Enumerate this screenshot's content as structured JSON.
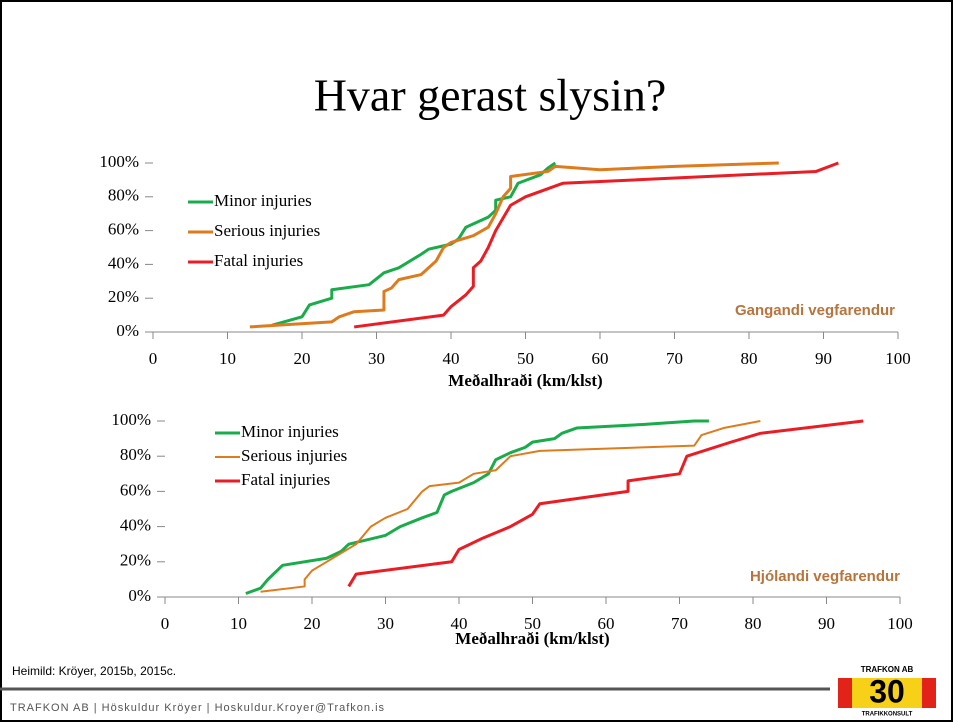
{
  "title": "Hvar gerast slysin?",
  "source": "Heimild: Kröyer, 2015b, 2015c.",
  "footer": "TRAFKON AB | Höskuldur Kröyer | Hoskuldur.Kroyer@Trafkon.is",
  "logo": {
    "top": "TRAFKON AB",
    "number": "30",
    "bottom": "TRAFIKKONSULT"
  },
  "chart_data": [
    {
      "type": "line",
      "xlabel": "Meðalhraði (km/klst)",
      "annotation": "Gangandi vegfarendur",
      "xlim": [
        0,
        100
      ],
      "xticks": [
        0,
        10,
        20,
        30,
        40,
        50,
        60,
        70,
        80,
        90,
        100
      ],
      "ylim": [
        0,
        100
      ],
      "yticks": [
        {
          "value": 0,
          "label": "0%"
        },
        {
          "value": 20,
          "label": "20%"
        },
        {
          "value": 40,
          "label": "40%"
        },
        {
          "value": 60,
          "label": "60%"
        },
        {
          "value": 80,
          "label": "80%"
        },
        {
          "value": 100,
          "label": "100%"
        }
      ],
      "series": [
        {
          "name": "Minor injuries",
          "color": "#1aab4a",
          "x": [
            16,
            20,
            21,
            24,
            24,
            29,
            31,
            33,
            36,
            37,
            40,
            41,
            42,
            45,
            46,
            46,
            48,
            49,
            52,
            53,
            54
          ],
          "values": [
            4,
            9,
            16,
            20,
            25,
            28,
            35,
            38,
            46,
            49,
            52,
            55,
            62,
            68,
            72,
            78,
            80,
            88,
            93,
            97,
            100
          ]
        },
        {
          "name": "Serious injuries",
          "color": "#de7b1d",
          "x": [
            13,
            24,
            25,
            27,
            31,
            31,
            32,
            33,
            36,
            38,
            39,
            40,
            43,
            45,
            46,
            47,
            48,
            48,
            53,
            54,
            60,
            70,
            84
          ],
          "values": [
            3,
            6,
            9,
            12,
            13,
            24,
            26,
            31,
            34,
            42,
            50,
            53,
            57,
            62,
            70,
            80,
            85,
            92,
            95,
            98,
            96,
            98,
            100
          ]
        },
        {
          "name": "Fatal injuries",
          "color": "#ec1c24",
          "x": [
            27,
            39,
            40,
            42,
            43,
            43,
            44,
            45,
            46,
            48,
            50,
            55,
            89,
            92
          ],
          "values": [
            3,
            10,
            15,
            22,
            27,
            38,
            42,
            50,
            60,
            75,
            80,
            88,
            95,
            100
          ]
        }
      ]
    },
    {
      "type": "line",
      "xlabel": "Meðalhraði (km/klst)",
      "annotation": "Hjólandi vegfarendur",
      "xlim": [
        0,
        100
      ],
      "xticks": [
        0,
        10,
        20,
        30,
        40,
        50,
        60,
        70,
        80,
        90,
        100
      ],
      "ylim": [
        0,
        100
      ],
      "yticks": [
        {
          "value": 0,
          "label": "0%"
        },
        {
          "value": 20,
          "label": "20%"
        },
        {
          "value": 40,
          "label": "40%"
        },
        {
          "value": 60,
          "label": "60%"
        },
        {
          "value": 80,
          "label": "80%"
        },
        {
          "value": 100,
          "label": "100%"
        }
      ],
      "series": [
        {
          "name": "Minor injuries",
          "color": "#1aab4a",
          "x": [
            11,
            13,
            14,
            15,
            16,
            22,
            24,
            25,
            30,
            32,
            35,
            37,
            38,
            39,
            42,
            44,
            45,
            47,
            49,
            50,
            53,
            54,
            56,
            65,
            72,
            74
          ],
          "values": [
            2,
            5,
            10,
            14,
            18,
            22,
            26,
            30,
            35,
            40,
            45,
            48,
            58,
            60,
            65,
            70,
            78,
            82,
            85,
            88,
            90,
            93,
            96,
            98,
            100,
            100
          ]
        },
        {
          "name": "Serious injuries",
          "color": "#de7b1d",
          "x": [
            13,
            19,
            19,
            20,
            22,
            26,
            28,
            30,
            33,
            34,
            35,
            36,
            40,
            42,
            45,
            47,
            51,
            72,
            73,
            76,
            81
          ],
          "values": [
            3,
            6,
            10,
            15,
            20,
            30,
            40,
            45,
            50,
            55,
            60,
            63,
            65,
            70,
            72,
            80,
            83,
            86,
            92,
            96,
            100
          ]
        },
        {
          "name": "Fatal injuries",
          "color": "#ec1c24",
          "x": [
            25,
            26,
            39,
            40,
            43,
            47,
            50,
            51,
            63,
            63,
            70,
            71,
            77,
            81,
            95
          ],
          "values": [
            6,
            13,
            20,
            27,
            33,
            40,
            47,
            53,
            60,
            66,
            70,
            80,
            88,
            93,
            100
          ]
        }
      ]
    }
  ]
}
